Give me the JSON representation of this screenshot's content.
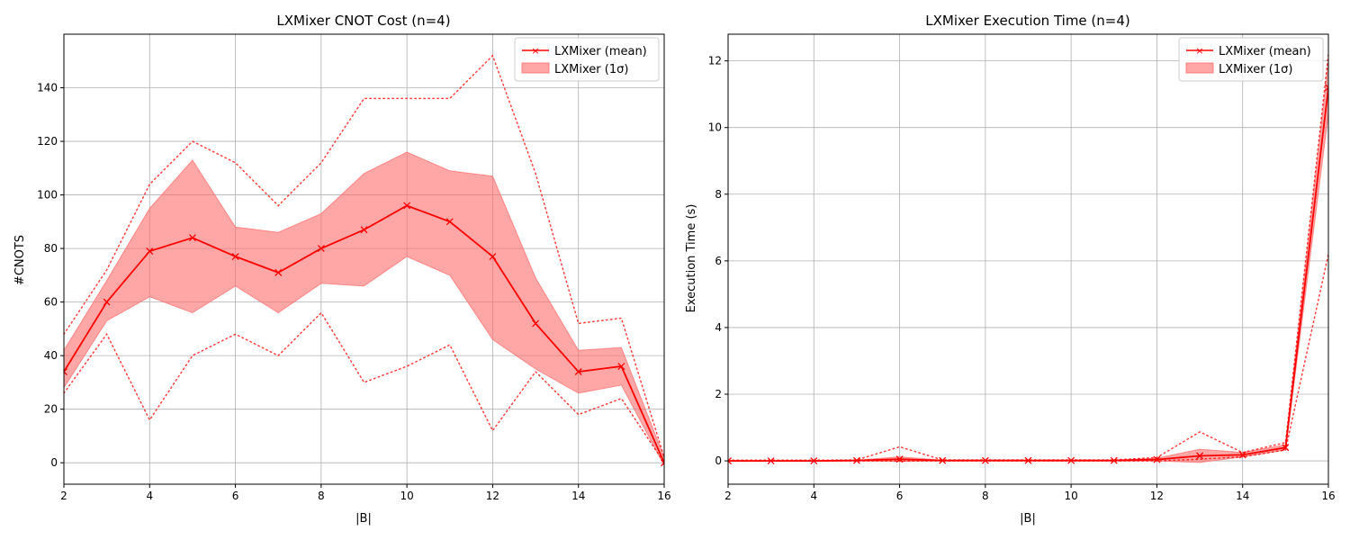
{
  "colors": {
    "mean": "#ff0000",
    "band": "#ff6b6b",
    "grid": "#b0b0b0"
  },
  "legend": {
    "mean_label": "LXMixer (mean)",
    "band_label": "LXMixer (1σ)",
    "placement": "top-right"
  },
  "chart_data": [
    {
      "type": "line",
      "title": "LXMixer CNOT Cost (n=4)",
      "xlabel": "|B|",
      "ylabel": "#CNOTS",
      "xlim": [
        2,
        16
      ],
      "ylim": [
        -8,
        160
      ],
      "grid": true,
      "x": [
        2,
        3,
        4,
        5,
        6,
        7,
        8,
        9,
        10,
        11,
        12,
        13,
        14,
        15,
        16
      ],
      "xticks": [
        2,
        4,
        6,
        8,
        10,
        12,
        14,
        16
      ],
      "yticks": [
        0,
        20,
        40,
        60,
        80,
        100,
        120,
        140
      ],
      "series": [
        {
          "name": "LXMixer (mean)",
          "values": [
            34,
            60,
            79,
            84,
            77,
            71,
            80,
            87,
            96,
            90,
            77,
            52,
            34,
            36,
            0
          ]
        },
        {
          "name": "LXMixer (1σ)",
          "upper": [
            42,
            68,
            95,
            113,
            88,
            86,
            93,
            108,
            116,
            109,
            107,
            69,
            42,
            43,
            2
          ],
          "lower": [
            28,
            53,
            62,
            56,
            66,
            56,
            67,
            66,
            77,
            70,
            46,
            35,
            26,
            29,
            -1
          ]
        },
        {
          "max": [
            48,
            72,
            104,
            120,
            112,
            96,
            112,
            136,
            136,
            136,
            152,
            108,
            52,
            54,
            2
          ],
          "min": [
            26,
            48,
            16,
            40,
            48,
            40,
            56,
            30,
            36,
            44,
            12,
            34,
            18,
            24,
            0
          ]
        }
      ]
    },
    {
      "type": "line",
      "title": "LXMixer Execution Time (n=4)",
      "xlabel": "|B|",
      "ylabel": "Execution Time (s)",
      "xlim": [
        2,
        16
      ],
      "ylim": [
        -0.7,
        12.8
      ],
      "grid": true,
      "x": [
        2,
        3,
        4,
        5,
        6,
        7,
        8,
        9,
        10,
        11,
        12,
        13,
        14,
        15,
        16
      ],
      "xticks": [
        2,
        4,
        6,
        8,
        10,
        12,
        14,
        16
      ],
      "yticks": [
        0,
        2,
        4,
        6,
        8,
        10,
        12
      ],
      "series": [
        {
          "name": "LXMixer (mean)",
          "values": [
            0.0,
            0.0,
            0.0,
            0.01,
            0.05,
            0.01,
            0.01,
            0.01,
            0.01,
            0.01,
            0.04,
            0.15,
            0.18,
            0.4,
            11.2
          ]
        },
        {
          "name": "LXMixer (1σ)",
          "upper": [
            0.01,
            0.01,
            0.01,
            0.02,
            0.12,
            0.02,
            0.02,
            0.02,
            0.02,
            0.02,
            0.08,
            0.35,
            0.25,
            0.48,
            12.0
          ],
          "lower": [
            0.0,
            0.0,
            0.0,
            0.0,
            -0.02,
            0.0,
            0.0,
            0.0,
            0.0,
            0.0,
            0.0,
            -0.05,
            0.12,
            0.33,
            10.4
          ]
        },
        {
          "max": [
            0.02,
            0.02,
            0.02,
            0.03,
            0.42,
            0.03,
            0.03,
            0.03,
            0.03,
            0.03,
            0.1,
            0.87,
            0.25,
            0.55,
            12.2
          ],
          "min": [
            0.0,
            0.0,
            0.0,
            0.0,
            0.0,
            0.0,
            0.0,
            0.0,
            0.0,
            0.0,
            0.0,
            0.05,
            0.12,
            0.33,
            6.2
          ]
        }
      ]
    }
  ]
}
